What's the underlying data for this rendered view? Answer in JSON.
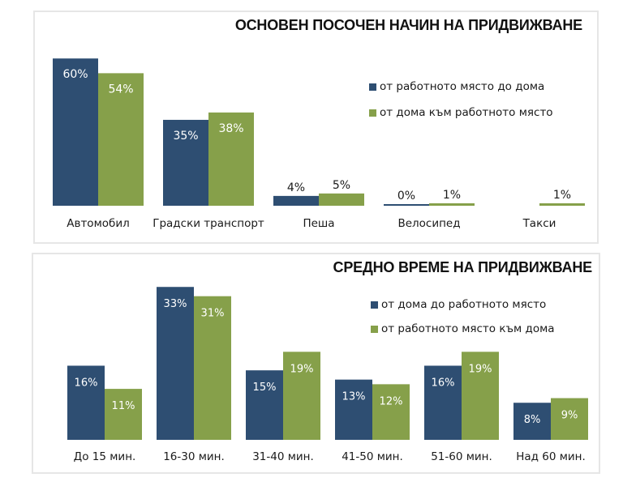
{
  "colors": {
    "series1": "#2e4e72",
    "series2": "#86a04a",
    "label_inside": "#ffffff",
    "label_outside": "#1a1a1a"
  },
  "chart_data": [
    {
      "type": "bar",
      "title": "ОСНОВЕН ПОСОЧЕН НАЧИН НА  ПРИДВИЖВАНЕ",
      "xlabel": "",
      "ylabel": "",
      "ylim": [
        0,
        60
      ],
      "grid": false,
      "legend_position": "right",
      "categories": [
        "Автомобил",
        "Градски транспорт",
        "Пеша",
        "Велосипед",
        "Такси"
      ],
      "series": [
        {
          "name": "от работното място до дома",
          "values": [
            60,
            35,
            4,
            0,
            null
          ],
          "labels": [
            "60%",
            "35%",
            "4%",
            "0%",
            ""
          ]
        },
        {
          "name": "от дома към работното място",
          "values": [
            54,
            38,
            5,
            1,
            1
          ],
          "labels": [
            "54%",
            "38%",
            "5%",
            "1%",
            "1%"
          ]
        }
      ]
    },
    {
      "type": "bar",
      "title": "СРЕДНО ВРЕМЕ НА ПРИДВИЖВАНЕ",
      "xlabel": "",
      "ylabel": "",
      "ylim": [
        0,
        33
      ],
      "grid": false,
      "legend_position": "right",
      "categories": [
        "До 15 мин.",
        "16-30 мин.",
        "31-40 мин.",
        "41-50 мин.",
        "51-60 мин.",
        "Над 60 мин."
      ],
      "series": [
        {
          "name": "от дома до работното място",
          "values": [
            16,
            33,
            15,
            13,
            16,
            8
          ],
          "labels": [
            "16%",
            "33%",
            "15%",
            "13%",
            "16%",
            "8%"
          ]
        },
        {
          "name": "от работното място към дома",
          "values": [
            11,
            31,
            19,
            12,
            19,
            9
          ],
          "labels": [
            "11%",
            "31%",
            "19%",
            "12%",
            "19%",
            "9%"
          ]
        }
      ]
    }
  ]
}
